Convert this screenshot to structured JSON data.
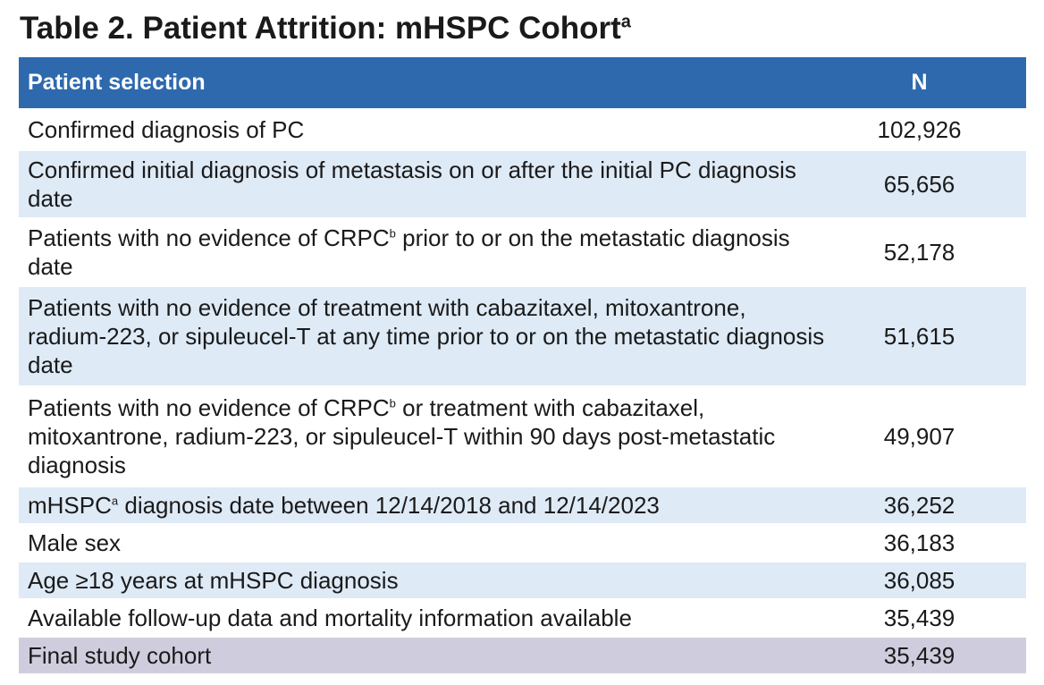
{
  "title": {
    "text": "Table 2. Patient Attrition: mHSPC Cohort",
    "superscript": "a"
  },
  "table": {
    "headers": {
      "selection": "Patient selection",
      "n": "N"
    },
    "rows": [
      {
        "label_parts": [
          "Confirmed diagnosis of PC"
        ],
        "superscripts": [],
        "n": "102,926"
      },
      {
        "label_parts": [
          "Confirmed initial diagnosis of metastasis on or after the initial PC diagnosis date"
        ],
        "superscripts": [],
        "n": "65,656"
      },
      {
        "label_parts": [
          "Patients with no evidence of CRPC",
          " prior to or on the metastatic diagnosis date"
        ],
        "superscripts": [
          "b"
        ],
        "n": "52,178"
      },
      {
        "label_parts": [
          "Patients with no evidence of treatment with cabazitaxel, mitoxantrone, radium-223, or sipuleucel-T at any time prior to or on the metastatic diagnosis date"
        ],
        "superscripts": [],
        "n": "51,615"
      },
      {
        "label_parts": [
          "Patients with no evidence of CRPC",
          " or treatment with cabazitaxel, mitoxantrone, radium-223, or sipuleucel-T within 90 days post-metastatic diagnosis"
        ],
        "superscripts": [
          "b"
        ],
        "n": "49,907"
      },
      {
        "label_parts": [
          "mHSPC",
          " diagnosis date between 12/14/2018 and 12/14/2023"
        ],
        "superscripts": [
          "a"
        ],
        "n": "36,252"
      },
      {
        "label_parts": [
          "Male sex"
        ],
        "superscripts": [],
        "n": "36,183"
      },
      {
        "label_parts": [
          "Age ≥18 years at mHSPC diagnosis"
        ],
        "superscripts": [],
        "n": "36,085"
      },
      {
        "label_parts": [
          "Available follow-up data and mortality information available"
        ],
        "superscripts": [],
        "n": "35,439"
      },
      {
        "label_parts": [
          "Final study cohort"
        ],
        "superscripts": [],
        "n": "35,439"
      }
    ]
  },
  "colors": {
    "header_bg": "#2e69ad",
    "header_text": "#ffffff",
    "row_alt_bg": "#deeaf6",
    "final_row_bg": "#cfcddd"
  }
}
